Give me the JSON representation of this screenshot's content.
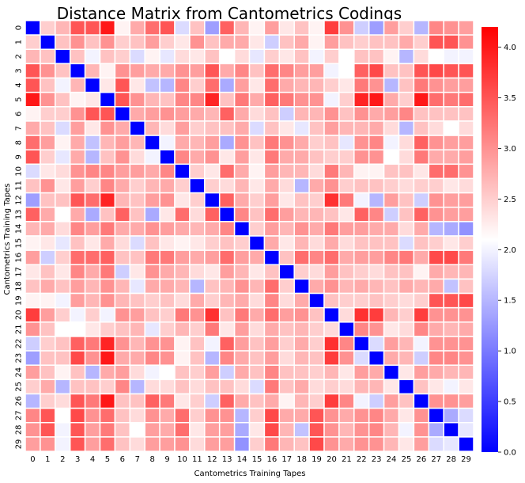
{
  "chart_data": {
    "type": "heatmap",
    "title": "Distance Matrix from Cantometrics Codings",
    "xlabel": "Cantometrics Training Tapes",
    "ylabel": "Cantometrics Training Tapes",
    "x_ticks": [
      "0",
      "1",
      "2",
      "3",
      "4",
      "5",
      "6",
      "7",
      "8",
      "9",
      "10",
      "11",
      "12",
      "13",
      "14",
      "15",
      "16",
      "17",
      "18",
      "19",
      "20",
      "21",
      "22",
      "23",
      "24",
      "25",
      "26",
      "27",
      "28",
      "29"
    ],
    "y_ticks": [
      "0",
      "1",
      "2",
      "3",
      "4",
      "5",
      "6",
      "7",
      "8",
      "9",
      "10",
      "11",
      "12",
      "13",
      "14",
      "15",
      "16",
      "17",
      "18",
      "19",
      "20",
      "21",
      "22",
      "23",
      "24",
      "25",
      "26",
      "27",
      "28",
      "29"
    ],
    "colorscale": "bwr",
    "vmin": 0.0,
    "vmax": 4.2,
    "colorbar_ticks": [
      "0.0",
      "0.5",
      "1.0",
      "1.5",
      "2.0",
      "2.5",
      "3.0",
      "3.5",
      "4.0"
    ],
    "colors": {
      "low": "#0000ff",
      "mid": "#ffffff",
      "high": "#ff0000",
      "cell_border": "#ffffff"
    },
    "values": [
      [
        0.0,
        2.5,
        2.7,
        3.5,
        3.5,
        4.0,
        2.2,
        2.8,
        3.3,
        3.5,
        1.8,
        2.6,
        1.3,
        3.4,
        2.7,
        2.2,
        2.9,
        2.3,
        2.6,
        2.2,
        3.7,
        3.0,
        1.7,
        1.3,
        2.9,
        2.5,
        1.5,
        3.1,
        3.0,
        2.9
      ],
      [
        2.5,
        0.0,
        2.6,
        3.0,
        2.6,
        3.0,
        2.5,
        2.6,
        2.9,
        2.5,
        2.3,
        3.0,
        2.6,
        2.8,
        2.8,
        2.3,
        1.7,
        2.6,
        2.8,
        2.2,
        2.9,
        2.6,
        2.5,
        2.6,
        2.6,
        2.8,
        2.5,
        3.5,
        3.5,
        3.0
      ],
      [
        2.7,
        2.6,
        0.0,
        2.6,
        2.0,
        2.6,
        2.5,
        1.8,
        2.2,
        1.9,
        2.4,
        2.3,
        2.6,
        2.1,
        2.4,
        1.9,
        2.5,
        2.3,
        2.6,
        2.0,
        2.5,
        2.1,
        2.6,
        2.6,
        2.2,
        1.5,
        2.4,
        2.1,
        2.0,
        2.0
      ],
      [
        3.5,
        3.0,
        2.6,
        0.0,
        2.7,
        2.2,
        3.0,
        2.9,
        2.8,
        2.8,
        3.0,
        2.9,
        3.5,
        2.8,
        3.1,
        2.6,
        3.3,
        3.1,
        2.9,
        2.9,
        2.0,
        2.1,
        3.4,
        3.6,
        2.6,
        2.6,
        3.5,
        3.6,
        3.5,
        3.5
      ],
      [
        3.5,
        2.6,
        2.0,
        2.7,
        0.0,
        2.3,
        3.5,
        2.3,
        1.6,
        1.5,
        3.1,
        2.5,
        3.3,
        1.4,
        2.9,
        2.3,
        3.3,
        2.8,
        2.7,
        2.7,
        2.5,
        2.3,
        3.2,
        3.0,
        1.5,
        2.6,
        3.2,
        3.0,
        2.9,
        2.9
      ],
      [
        4.0,
        3.0,
        2.6,
        2.2,
        2.3,
        0.0,
        3.5,
        3.0,
        2.7,
        2.6,
        3.1,
        3.1,
        3.9,
        2.6,
        3.2,
        2.8,
        3.4,
        3.2,
        3.0,
        3.0,
        2.0,
        2.5,
        3.9,
        4.0,
        2.8,
        2.5,
        4.0,
        3.3,
        3.2,
        3.3
      ],
      [
        2.2,
        2.5,
        2.5,
        3.0,
        3.5,
        3.5,
        0.0,
        2.8,
        2.9,
        3.0,
        2.9,
        2.8,
        2.7,
        3.4,
        2.8,
        2.4,
        2.6,
        1.7,
        2.7,
        2.7,
        3.0,
        2.6,
        3.0,
        2.8,
        2.9,
        3.1,
        2.6,
        2.6,
        2.6,
        2.6
      ],
      [
        2.8,
        2.6,
        1.8,
        2.9,
        2.3,
        3.0,
        2.8,
        0.0,
        2.7,
        2.4,
        2.9,
        2.5,
        2.6,
        2.6,
        2.8,
        1.8,
        2.6,
        2.3,
        1.9,
        2.6,
        2.9,
        2.7,
        2.7,
        2.8,
        2.4,
        1.5,
        2.6,
        2.4,
        2.1,
        2.4
      ],
      [
        3.3,
        2.9,
        2.2,
        2.8,
        1.6,
        2.7,
        2.9,
        2.7,
        0.0,
        2.0,
        2.8,
        2.7,
        2.9,
        1.4,
        3.0,
        2.6,
        3.2,
        3.0,
        2.8,
        2.5,
        2.6,
        1.9,
        3.0,
        3.1,
        2.0,
        2.4,
        3.4,
        3.0,
        2.9,
        2.9
      ],
      [
        3.5,
        2.5,
        1.9,
        2.8,
        1.5,
        2.6,
        3.0,
        2.4,
        2.0,
        0.0,
        3.1,
        2.8,
        3.0,
        2.3,
        2.9,
        2.3,
        3.2,
        2.8,
        2.8,
        2.6,
        2.5,
        2.5,
        3.0,
        3.0,
        2.1,
        2.4,
        3.2,
        2.8,
        2.8,
        2.9
      ],
      [
        1.8,
        2.3,
        2.4,
        3.0,
        3.1,
        3.1,
        2.9,
        2.9,
        2.8,
        3.1,
        0.0,
        2.5,
        2.3,
        3.3,
        2.8,
        2.2,
        2.9,
        2.7,
        2.7,
        2.4,
        3.2,
        2.7,
        2.2,
        2.2,
        2.6,
        2.6,
        2.3,
        3.3,
        3.3,
        3.0
      ],
      [
        2.6,
        3.0,
        2.3,
        2.9,
        2.5,
        3.1,
        2.8,
        2.5,
        2.7,
        2.8,
        2.5,
        0.0,
        2.5,
        2.4,
        2.7,
        2.3,
        2.8,
        2.4,
        1.5,
        2.8,
        3.0,
        2.5,
        2.6,
        2.6,
        2.5,
        2.4,
        2.5,
        2.5,
        2.3,
        2.4
      ],
      [
        1.3,
        2.6,
        2.6,
        3.5,
        3.3,
        3.9,
        2.7,
        2.6,
        2.9,
        3.0,
        2.3,
        2.5,
        0.0,
        3.4,
        2.8,
        2.5,
        2.9,
        2.3,
        2.6,
        2.5,
        3.8,
        3.2,
        2.0,
        1.5,
        2.9,
        2.6,
        1.7,
        3.0,
        2.9,
        2.9
      ],
      [
        3.4,
        2.8,
        2.1,
        2.8,
        1.4,
        2.6,
        3.4,
        2.6,
        1.4,
        2.3,
        3.3,
        2.4,
        3.4,
        0.0,
        3.1,
        2.6,
        3.3,
        2.9,
        2.7,
        2.7,
        2.6,
        2.3,
        3.4,
        3.1,
        1.7,
        2.6,
        3.4,
        3.0,
        2.9,
        2.9
      ],
      [
        2.7,
        2.8,
        2.4,
        3.1,
        2.9,
        3.2,
        2.8,
        2.8,
        3.0,
        2.9,
        2.8,
        2.7,
        2.8,
        3.1,
        0.0,
        2.5,
        2.9,
        2.7,
        3.0,
        2.8,
        3.2,
        2.9,
        2.9,
        2.8,
        2.8,
        2.4,
        2.8,
        1.5,
        1.4,
        1.2
      ],
      [
        2.2,
        2.3,
        1.9,
        2.6,
        2.3,
        2.8,
        2.4,
        1.8,
        2.6,
        2.3,
        2.2,
        2.3,
        2.5,
        2.6,
        2.5,
        0.0,
        2.8,
        2.3,
        2.7,
        2.4,
        2.8,
        2.4,
        2.6,
        2.6,
        2.6,
        1.8,
        2.6,
        2.5,
        2.3,
        2.5
      ],
      [
        2.9,
        1.7,
        2.5,
        3.3,
        3.3,
        3.4,
        2.6,
        2.6,
        3.2,
        3.2,
        2.9,
        2.8,
        2.9,
        3.3,
        2.9,
        2.8,
        0.0,
        2.6,
        3.3,
        3.1,
        3.3,
        2.8,
        2.9,
        2.9,
        3.1,
        3.2,
        2.8,
        3.6,
        3.6,
        3.2
      ],
      [
        2.3,
        2.6,
        2.3,
        3.1,
        2.8,
        3.2,
        1.7,
        2.3,
        3.0,
        2.8,
        2.7,
        2.4,
        2.3,
        2.9,
        2.7,
        2.3,
        2.6,
        0.0,
        2.5,
        2.4,
        2.9,
        2.6,
        2.5,
        2.4,
        2.6,
        2.6,
        2.2,
        2.8,
        2.7,
        2.7
      ],
      [
        2.6,
        2.8,
        2.6,
        2.9,
        2.7,
        3.0,
        2.7,
        1.9,
        2.8,
        2.8,
        2.7,
        1.5,
        2.6,
        2.7,
        3.0,
        2.7,
        3.3,
        2.5,
        0.0,
        2.8,
        3.0,
        2.7,
        2.8,
        2.7,
        2.6,
        2.8,
        2.7,
        2.8,
        1.6,
        2.6
      ],
      [
        2.2,
        2.2,
        2.0,
        2.9,
        2.7,
        3.0,
        2.7,
        2.6,
        2.5,
        2.6,
        2.4,
        2.8,
        2.5,
        2.7,
        2.8,
        2.4,
        3.1,
        2.4,
        2.8,
        0.0,
        2.6,
        2.5,
        2.5,
        2.6,
        2.5,
        2.4,
        2.5,
        3.5,
        3.5,
        3.6
      ],
      [
        3.7,
        2.9,
        2.5,
        2.0,
        2.5,
        2.0,
        3.0,
        2.9,
        2.6,
        2.5,
        3.2,
        3.0,
        3.8,
        2.6,
        3.2,
        2.8,
        3.3,
        2.9,
        3.0,
        2.6,
        0.0,
        2.4,
        3.8,
        3.7,
        2.7,
        2.5,
        3.7,
        3.0,
        3.0,
        3.0
      ],
      [
        3.0,
        2.6,
        2.1,
        2.1,
        2.3,
        2.5,
        2.6,
        2.7,
        1.9,
        2.5,
        2.7,
        2.5,
        3.2,
        2.3,
        2.9,
        2.4,
        2.8,
        2.6,
        2.7,
        2.5,
        2.4,
        0.0,
        3.1,
        3.0,
        2.3,
        2.4,
        3.1,
        2.8,
        2.7,
        2.8
      ],
      [
        1.7,
        2.5,
        2.6,
        3.4,
        3.2,
        3.9,
        3.0,
        2.7,
        3.0,
        3.0,
        2.2,
        2.6,
        2.0,
        3.4,
        2.9,
        2.6,
        2.9,
        2.5,
        2.8,
        2.5,
        3.8,
        3.1,
        0.0,
        1.8,
        2.9,
        2.7,
        2.0,
        3.0,
        3.0,
        3.0
      ],
      [
        1.3,
        2.6,
        2.6,
        3.6,
        3.0,
        4.0,
        2.8,
        2.8,
        3.1,
        3.0,
        2.2,
        2.6,
        1.5,
        3.1,
        2.8,
        2.6,
        2.9,
        2.4,
        2.7,
        2.6,
        3.7,
        3.0,
        1.8,
        0.0,
        2.8,
        2.7,
        1.7,
        3.1,
        3.1,
        3.0
      ],
      [
        2.9,
        2.6,
        2.2,
        2.6,
        1.5,
        2.8,
        2.9,
        2.4,
        2.0,
        2.1,
        2.6,
        2.5,
        2.9,
        1.7,
        2.8,
        2.6,
        3.1,
        2.6,
        2.6,
        2.5,
        2.7,
        2.3,
        2.9,
        2.8,
        0.0,
        2.3,
        2.9,
        2.8,
        2.7,
        2.7
      ],
      [
        2.5,
        2.8,
        1.5,
        2.6,
        2.6,
        2.5,
        3.1,
        1.5,
        2.4,
        2.4,
        2.6,
        2.4,
        2.6,
        2.6,
        2.4,
        1.8,
        3.2,
        2.6,
        2.8,
        2.4,
        2.5,
        2.4,
        2.7,
        2.7,
        2.3,
        0.0,
        2.6,
        2.3,
        2.0,
        2.3
      ],
      [
        1.5,
        2.5,
        2.4,
        3.5,
        3.2,
        4.0,
        2.6,
        2.6,
        3.4,
        3.2,
        2.3,
        2.5,
        1.7,
        3.4,
        2.8,
        2.6,
        2.8,
        2.2,
        2.7,
        2.5,
        3.7,
        3.1,
        2.0,
        1.7,
        2.9,
        2.6,
        0.0,
        3.0,
        3.0,
        2.9
      ],
      [
        3.1,
        3.5,
        2.1,
        3.6,
        3.0,
        3.3,
        2.6,
        2.4,
        3.0,
        2.8,
        3.3,
        2.5,
        3.0,
        3.0,
        1.5,
        2.5,
        3.6,
        2.8,
        2.8,
        3.5,
        3.0,
        2.8,
        3.0,
        3.1,
        2.8,
        2.3,
        3.0,
        0.0,
        1.4,
        1.8
      ],
      [
        3.0,
        3.5,
        2.0,
        3.5,
        2.9,
        3.2,
        2.6,
        2.1,
        2.9,
        2.8,
        3.3,
        2.3,
        2.9,
        2.9,
        1.4,
        2.3,
        3.6,
        2.7,
        1.6,
        3.5,
        3.0,
        2.7,
        3.0,
        3.1,
        2.7,
        2.0,
        3.0,
        1.4,
        0.0,
        1.9
      ],
      [
        2.9,
        3.0,
        2.0,
        3.5,
        2.9,
        3.3,
        2.6,
        2.4,
        2.9,
        2.9,
        3.0,
        2.4,
        2.9,
        2.9,
        1.2,
        2.5,
        3.2,
        2.7,
        2.6,
        3.6,
        3.0,
        2.8,
        3.0,
        3.0,
        2.7,
        2.3,
        2.9,
        1.8,
        1.9,
        0.0
      ]
    ]
  }
}
